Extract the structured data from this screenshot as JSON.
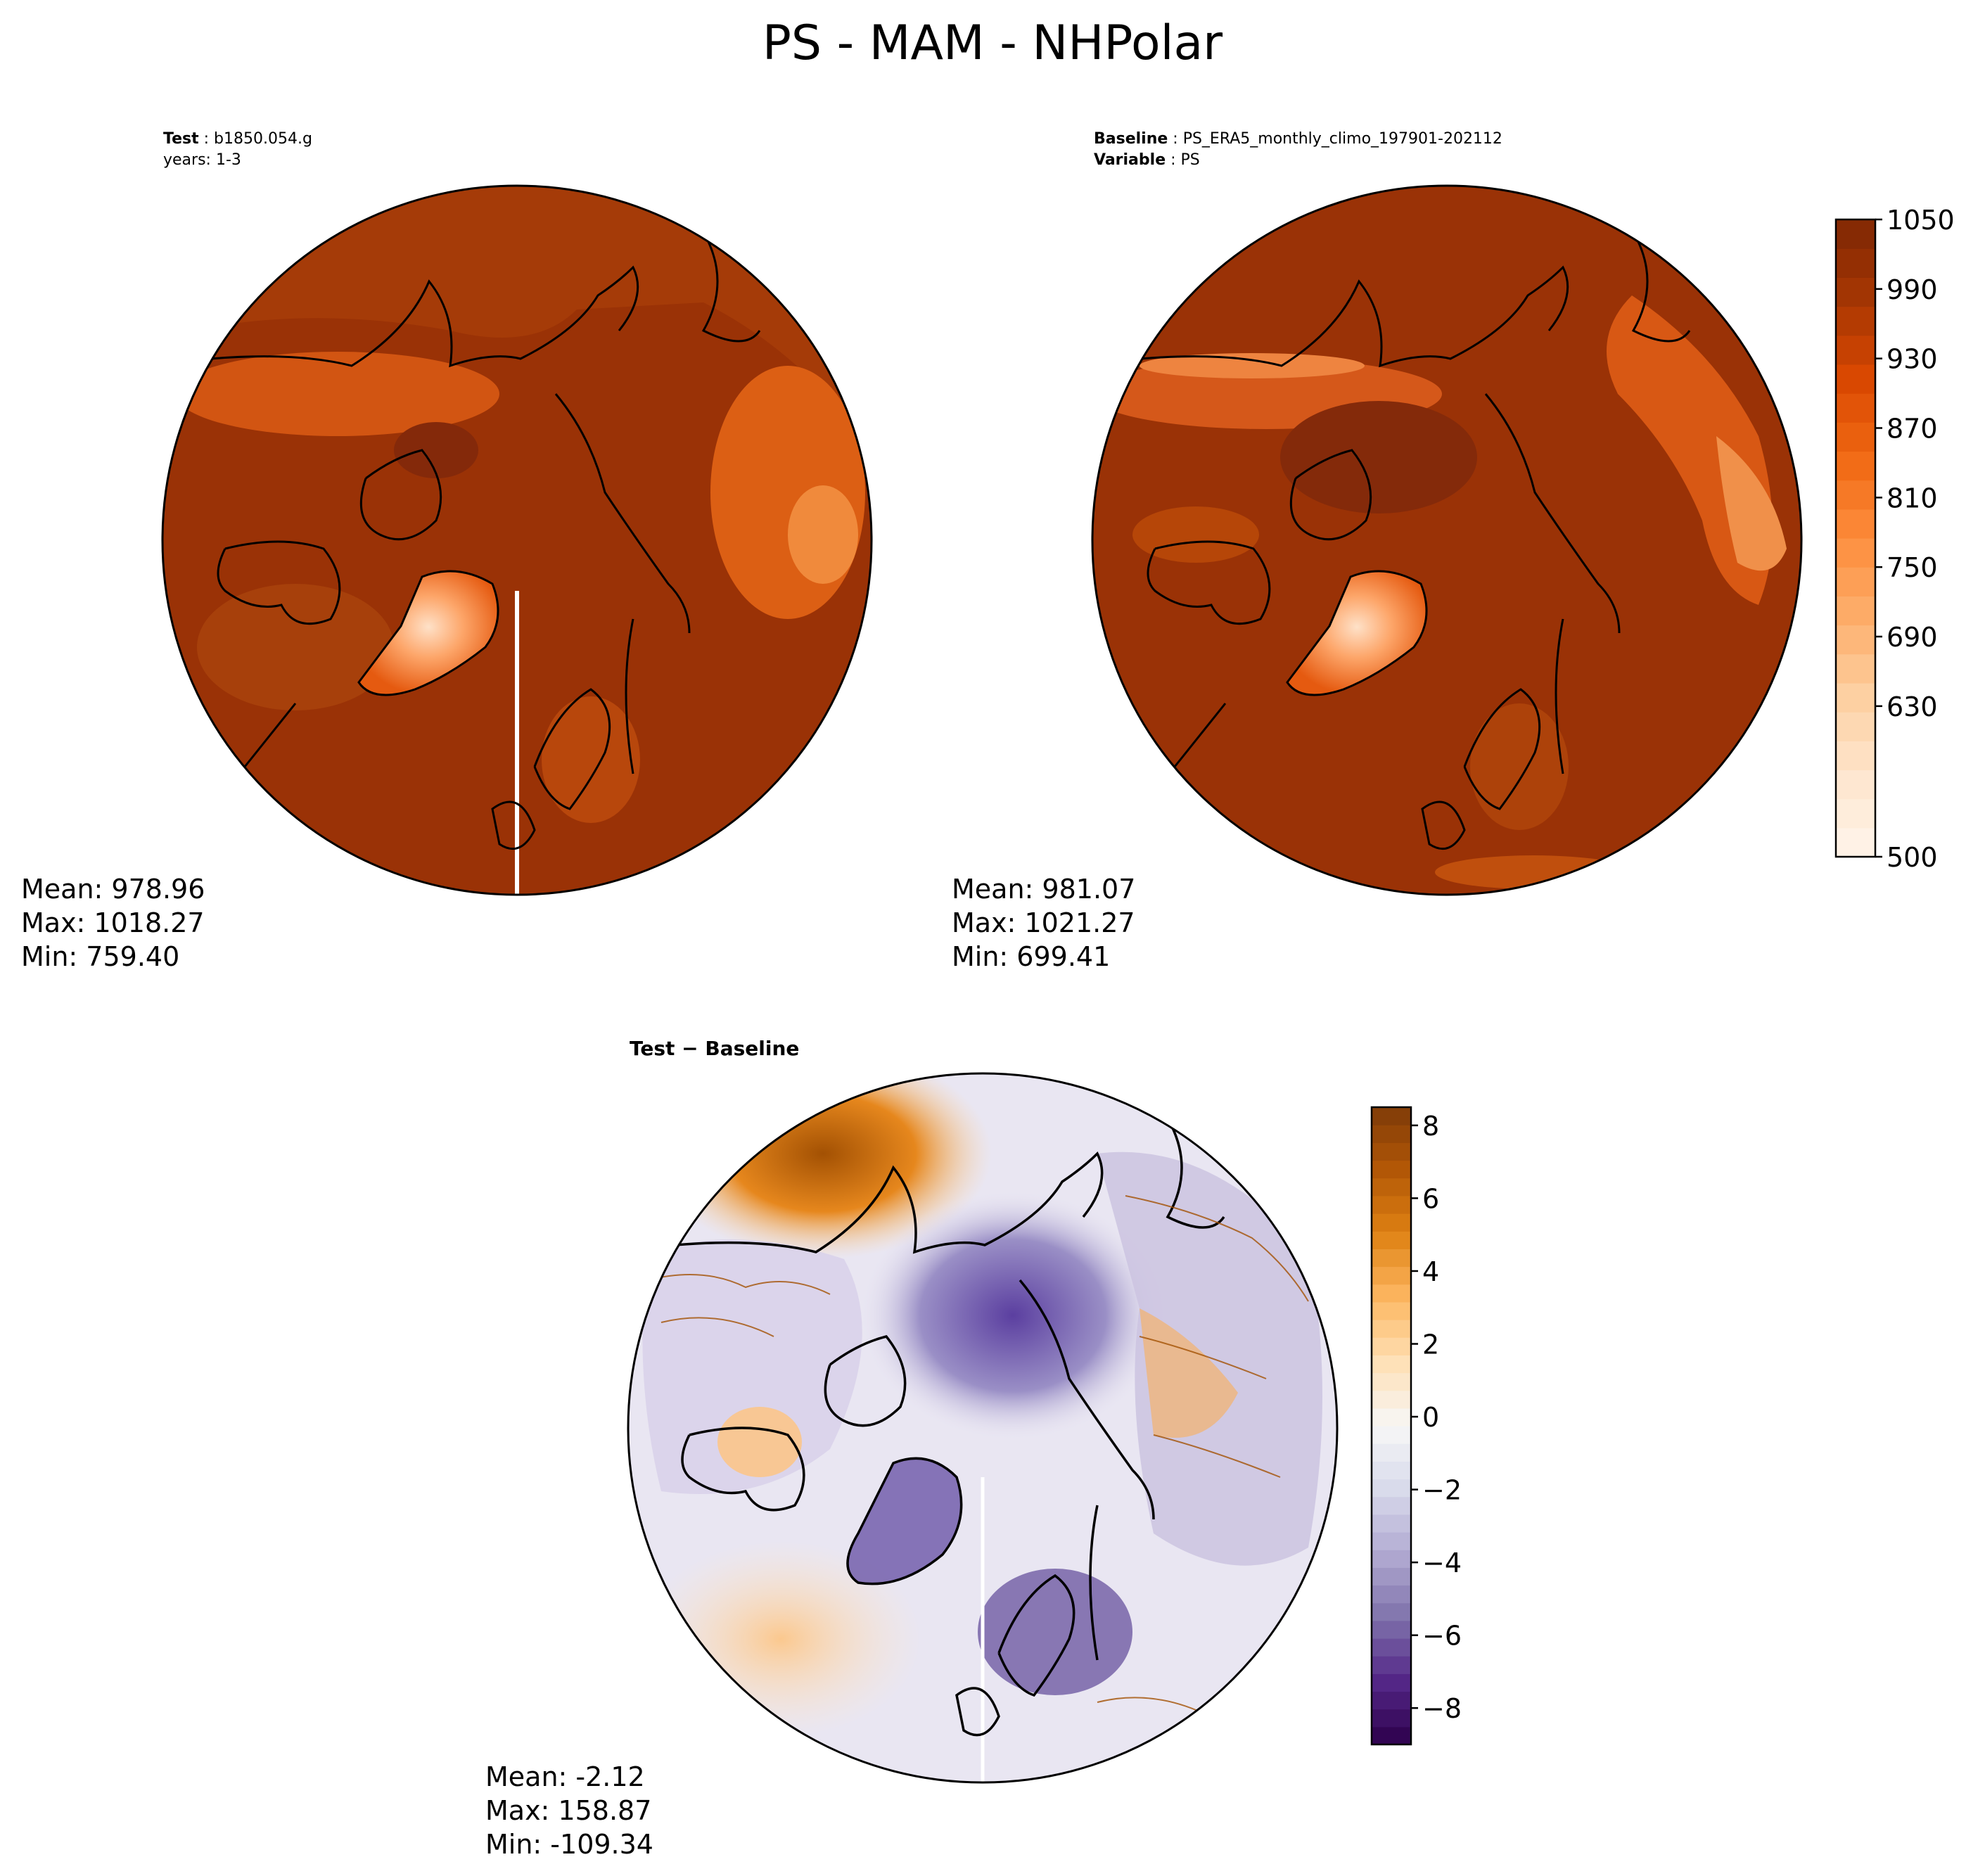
{
  "title": "PS - MAM - NHPolar",
  "panels": {
    "test": {
      "label_key": "Test",
      "label_value": "b1850.054.g",
      "line2": "years: 1-3",
      "stats": {
        "mean": "Mean: 978.96",
        "max": "Max: 1018.27",
        "min": "Min: 759.40"
      }
    },
    "baseline": {
      "label_key": "Baseline",
      "label_value": "PS_ERA5_monthly_climo_197901-202112",
      "line2_key": "Variable",
      "line2_value": "PS",
      "stats": {
        "mean": "Mean: 981.07",
        "max": "Max: 1021.27",
        "min": "Min: 699.41"
      }
    },
    "diff": {
      "label_left": "Test",
      "label_sep": " − ",
      "label_right": "Baseline",
      "stats": {
        "mean": "Mean: -2.12",
        "max": "Max: 158.87",
        "min": "Min: -109.34"
      }
    }
  },
  "colors": {
    "oranges_dark": "#8b2b04",
    "land_outline": "#000000"
  },
  "chart_data": [
    {
      "type": "heatmap",
      "name": "test",
      "projection": "north-polar-stereographic",
      "field_range": [
        759.4,
        1018.27
      ],
      "colorbar": {
        "levels_range": [
          500,
          1050
        ],
        "tick_labels": [
          "1050",
          "990",
          "930",
          "870",
          "810",
          "750",
          "690",
          "630",
          "500"
        ],
        "tick_values": [
          1050,
          990,
          930,
          870,
          810,
          750,
          690,
          630,
          500
        ]
      }
    },
    {
      "type": "heatmap",
      "name": "baseline",
      "projection": "north-polar-stereographic",
      "field_range": [
        699.41,
        1021.27
      ],
      "colorbar": {
        "levels_range": [
          500,
          1050
        ],
        "tick_labels": [
          "1050",
          "990",
          "930",
          "870",
          "810",
          "750",
          "690",
          "630",
          "500"
        ],
        "tick_values": [
          1050,
          990,
          930,
          870,
          810,
          750,
          690,
          630,
          500
        ]
      }
    },
    {
      "type": "heatmap",
      "name": "difference",
      "projection": "north-polar-stereographic",
      "field_range": [
        -109.34,
        158.87
      ],
      "colorbar": {
        "levels_range": [
          -9,
          8.5
        ],
        "tick_labels": [
          "8",
          "6",
          "4",
          "2",
          "0",
          "−2",
          "−4",
          "−6",
          "−8"
        ],
        "tick_values": [
          8,
          6,
          4,
          2,
          0,
          -2,
          -4,
          -6,
          -8
        ]
      }
    }
  ]
}
